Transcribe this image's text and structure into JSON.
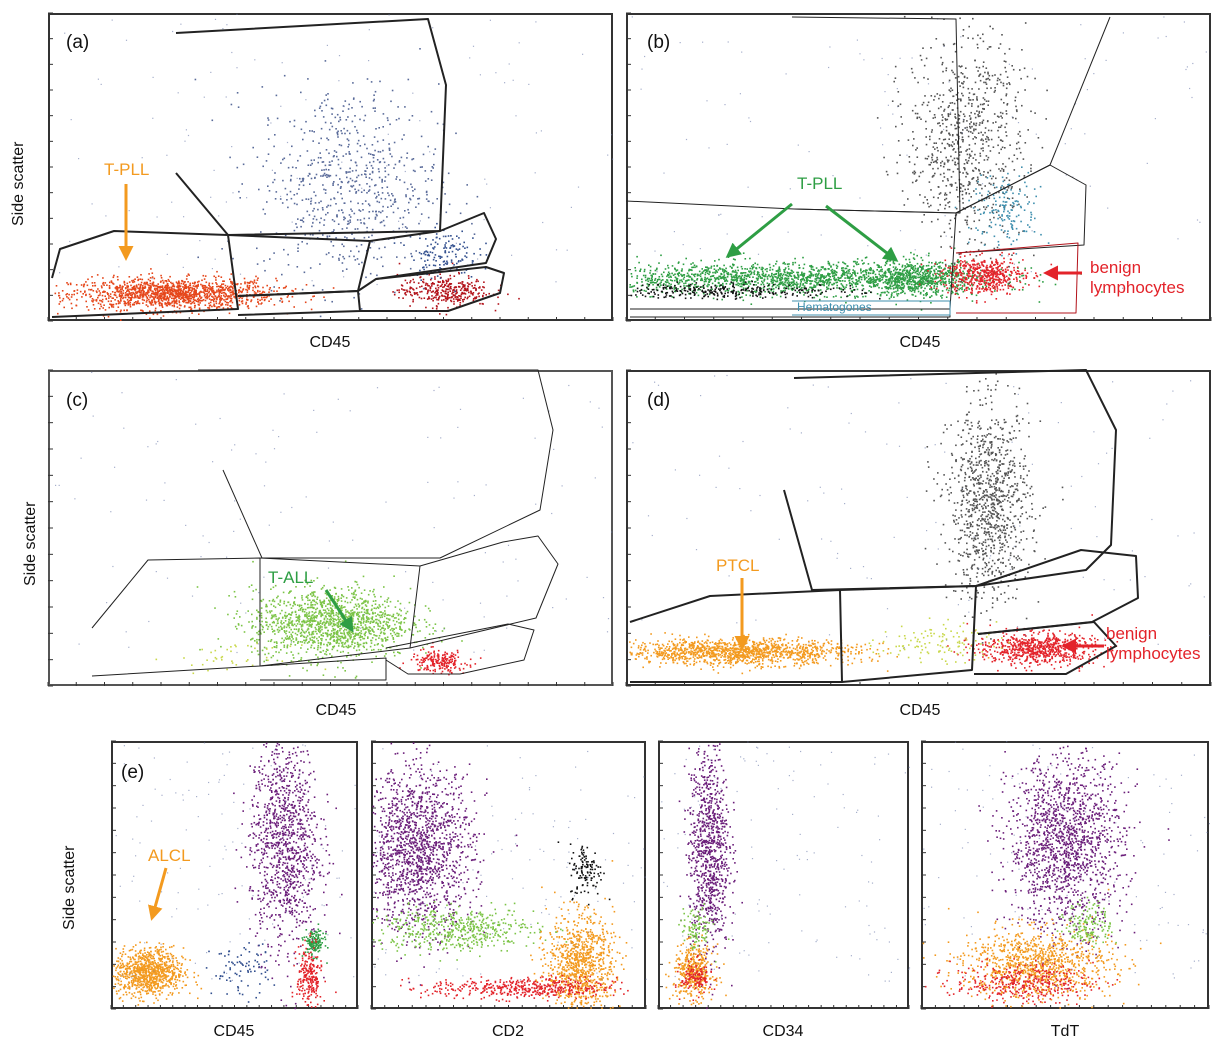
{
  "colors": {
    "orange": "#f39a1f",
    "orange_red": "#e5461a",
    "dark_red": "#b3131b",
    "red": "#e3232a",
    "blue": "#33508f",
    "slate": "#5a6b9a",
    "green": "#2e9e44",
    "light_green": "#7cc447",
    "purple": "#6b1e7a",
    "gray": "#555555",
    "teal": "#3f8fae",
    "lime": "#c9d84b",
    "black": "#111111"
  },
  "chart_data": [
    {
      "id": "a",
      "type": "scatter",
      "panel_label": "(a)",
      "xlabel": "CD45",
      "ylabel": "Side scatter",
      "annotations": [
        {
          "text": "T-PLL",
          "color": "orange"
        }
      ],
      "populations": [
        {
          "color": "orange_red",
          "cx": 0.22,
          "cy": 0.09,
          "sx": 0.09,
          "sy": 0.025,
          "n": 1400
        },
        {
          "color": "slate",
          "cx": 0.53,
          "cy": 0.45,
          "sx": 0.08,
          "sy": 0.16,
          "n": 700
        },
        {
          "color": "dark_red",
          "cx": 0.7,
          "cy": 0.1,
          "sx": 0.04,
          "sy": 0.025,
          "n": 350
        },
        {
          "color": "blue",
          "cx": 0.7,
          "cy": 0.22,
          "sx": 0.03,
          "sy": 0.04,
          "n": 150
        }
      ]
    },
    {
      "id": "b",
      "type": "scatter",
      "panel_label": "(b)",
      "xlabel": "CD45",
      "ylabel": "",
      "annotations": [
        {
          "text": "T-PLL",
          "color": "green"
        },
        {
          "text": "benign\nlymphocytes",
          "color": "red"
        }
      ],
      "gate_labels": [
        {
          "text": "Hematogones",
          "color": "teal"
        }
      ],
      "populations": [
        {
          "color": "green",
          "cx": 0.27,
          "cy": 0.14,
          "sx": 0.17,
          "sy": 0.025,
          "n": 1600
        },
        {
          "color": "green",
          "cx": 0.5,
          "cy": 0.14,
          "sx": 0.05,
          "sy": 0.03,
          "n": 600
        },
        {
          "color": "black",
          "cx": 0.17,
          "cy": 0.1,
          "sx": 0.11,
          "sy": 0.012,
          "n": 300
        },
        {
          "color": "red",
          "cx": 0.61,
          "cy": 0.15,
          "sx": 0.035,
          "sy": 0.03,
          "n": 500
        },
        {
          "color": "gray",
          "cx": 0.58,
          "cy": 0.6,
          "sx": 0.05,
          "sy": 0.17,
          "n": 800
        },
        {
          "color": "teal",
          "cx": 0.65,
          "cy": 0.36,
          "sx": 0.03,
          "sy": 0.06,
          "n": 160
        }
      ]
    },
    {
      "id": "c",
      "type": "scatter",
      "panel_label": "(c)",
      "xlabel": "CD45",
      "ylabel": "Side scatter",
      "annotations": [
        {
          "text": "T-ALL",
          "color": "green"
        }
      ],
      "populations": [
        {
          "color": "light_green",
          "cx": 0.5,
          "cy": 0.2,
          "sx": 0.07,
          "sy": 0.055,
          "n": 1400
        },
        {
          "color": "red",
          "cx": 0.69,
          "cy": 0.08,
          "sx": 0.025,
          "sy": 0.018,
          "n": 200
        },
        {
          "color": "lime",
          "cx": 0.33,
          "cy": 0.09,
          "sx": 0.05,
          "sy": 0.02,
          "n": 40
        }
      ]
    },
    {
      "id": "d",
      "type": "scatter",
      "panel_label": "(d)",
      "xlabel": "CD45",
      "ylabel": "",
      "annotations": [
        {
          "text": "PTCL",
          "color": "orange"
        },
        {
          "text": "benign\nlymphocytes",
          "color": "red"
        }
      ],
      "populations": [
        {
          "color": "orange",
          "cx": 0.19,
          "cy": 0.11,
          "sx": 0.1,
          "sy": 0.02,
          "n": 1300
        },
        {
          "color": "gray",
          "cx": 0.62,
          "cy": 0.58,
          "sx": 0.035,
          "sy": 0.15,
          "n": 1000
        },
        {
          "color": "red",
          "cx": 0.7,
          "cy": 0.12,
          "sx": 0.05,
          "sy": 0.025,
          "n": 700
        },
        {
          "color": "lime",
          "cx": 0.53,
          "cy": 0.14,
          "sx": 0.05,
          "sy": 0.03,
          "n": 120
        }
      ]
    },
    {
      "id": "e1",
      "type": "scatter",
      "panel_label": "(e)",
      "xlabel": "CD45",
      "ylabel": "Side scatter",
      "annotations": [
        {
          "text": "ALCL",
          "color": "orange"
        }
      ],
      "populations": [
        {
          "color": "orange",
          "cx": 0.15,
          "cy": 0.14,
          "sx": 0.07,
          "sy": 0.045,
          "n": 900
        },
        {
          "color": "purple",
          "cx": 0.7,
          "cy": 0.63,
          "sx": 0.07,
          "sy": 0.2,
          "n": 1100
        },
        {
          "color": "green",
          "cx": 0.82,
          "cy": 0.25,
          "sx": 0.02,
          "sy": 0.025,
          "n": 150
        },
        {
          "color": "red",
          "cx": 0.8,
          "cy": 0.12,
          "sx": 0.025,
          "sy": 0.06,
          "n": 220
        },
        {
          "color": "blue",
          "cx": 0.52,
          "cy": 0.15,
          "sx": 0.06,
          "sy": 0.05,
          "n": 80
        }
      ]
    },
    {
      "id": "e2",
      "type": "scatter",
      "panel_label": "",
      "xlabel": "CD2",
      "ylabel": "",
      "annotations": [],
      "populations": [
        {
          "color": "purple",
          "cx": 0.17,
          "cy": 0.6,
          "sx": 0.1,
          "sy": 0.15,
          "n": 1500
        },
        {
          "color": "light_green",
          "cx": 0.3,
          "cy": 0.3,
          "sx": 0.15,
          "sy": 0.04,
          "n": 500
        },
        {
          "color": "orange",
          "cx": 0.76,
          "cy": 0.17,
          "sx": 0.06,
          "sy": 0.09,
          "n": 900
        },
        {
          "color": "red",
          "cx": 0.55,
          "cy": 0.08,
          "sx": 0.17,
          "sy": 0.02,
          "n": 450
        },
        {
          "color": "black",
          "cx": 0.78,
          "cy": 0.52,
          "sx": 0.03,
          "sy": 0.05,
          "n": 120
        }
      ]
    },
    {
      "id": "e3",
      "type": "scatter",
      "panel_label": "",
      "xlabel": "CD34",
      "ylabel": "",
      "annotations": [],
      "populations": [
        {
          "color": "purple",
          "cx": 0.2,
          "cy": 0.6,
          "sx": 0.04,
          "sy": 0.2,
          "n": 900
        },
        {
          "color": "orange",
          "cx": 0.14,
          "cy": 0.14,
          "sx": 0.04,
          "sy": 0.05,
          "n": 400
        },
        {
          "color": "light_green",
          "cx": 0.15,
          "cy": 0.3,
          "sx": 0.03,
          "sy": 0.04,
          "n": 100
        },
        {
          "color": "red",
          "cx": 0.15,
          "cy": 0.12,
          "sx": 0.03,
          "sy": 0.03,
          "n": 120
        }
      ]
    },
    {
      "id": "e4",
      "type": "scatter",
      "panel_label": "",
      "xlabel": "TdT",
      "ylabel": "",
      "annotations": [],
      "populations": [
        {
          "color": "purple",
          "cx": 0.5,
          "cy": 0.62,
          "sx": 0.1,
          "sy": 0.16,
          "n": 1500
        },
        {
          "color": "orange",
          "cx": 0.4,
          "cy": 0.17,
          "sx": 0.13,
          "sy": 0.065,
          "n": 1000
        },
        {
          "color": "red",
          "cx": 0.35,
          "cy": 0.1,
          "sx": 0.12,
          "sy": 0.035,
          "n": 350
        },
        {
          "color": "light_green",
          "cx": 0.58,
          "cy": 0.32,
          "sx": 0.04,
          "sy": 0.04,
          "n": 150
        }
      ]
    }
  ]
}
